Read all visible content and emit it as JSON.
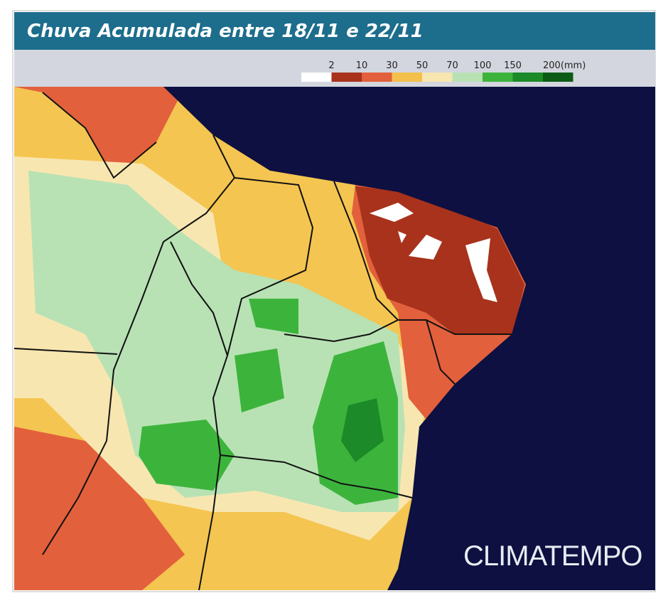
{
  "header": {
    "title": "Chuva Acumulada entre 18/11 e 22/11"
  },
  "legend": [
    {
      "label": "2",
      "color": "#ffffff"
    },
    {
      "label": "10",
      "color": "#a8321c"
    },
    {
      "label": "30",
      "color": "#e2603c"
    },
    {
      "label": "50",
      "color": "#f4c04c"
    },
    {
      "label": "70",
      "color": "#f8e6b0"
    },
    {
      "label": "100",
      "color": "#b8e2b4"
    },
    {
      "label": "150",
      "color": "#3cb43c"
    },
    {
      "label": "200(mm)",
      "color": "#1c8a28"
    },
    {
      "label": "",
      "color": "#0c5c16"
    }
  ],
  "brand": "CLIMATEMPO"
}
